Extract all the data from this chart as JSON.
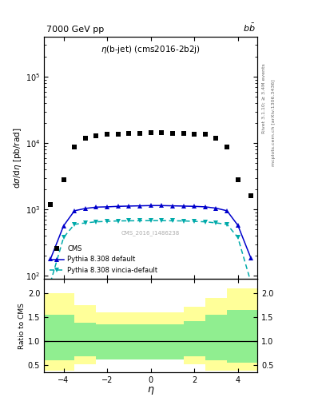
{
  "title_left": "7000 GeV pp",
  "title_right": "b$\\bar{b}$",
  "plot_title": "$\\eta$(b-jet) (cms2016-2b2j)",
  "xlabel": "$\\eta$",
  "ylabel_main": "d$\\sigma$/d$\\eta$ [pb/rad]",
  "ylabel_ratio": "Ratio to CMS",
  "right_label_top": "Rivet 3.1.10; ≥ 3.4M events",
  "right_label_bottom": "mcplots.cern.ch [arXiv:1306.3436]",
  "watermark": "CMS_2016_I1486238",
  "xlim": [
    -4.9,
    4.9
  ],
  "ylim_main": [
    90,
    400000
  ],
  "ylim_ratio": [
    0.35,
    2.3
  ],
  "cms_eta": [
    -4.6,
    -4.0,
    -3.5,
    -3.0,
    -2.5,
    -2.0,
    -1.5,
    -1.0,
    -0.5,
    0.0,
    0.5,
    1.0,
    1.5,
    2.0,
    2.5,
    3.0,
    3.5,
    4.0,
    4.6
  ],
  "cms_values": [
    1200,
    2800,
    8800,
    12000,
    13000,
    13500,
    13500,
    14000,
    14000,
    14500,
    14500,
    14200,
    14000,
    13800,
    13500,
    12000,
    8800,
    2800,
    1600
  ],
  "pythia_default_eta": [
    -4.6,
    -4.0,
    -3.5,
    -3.0,
    -2.5,
    -2.0,
    -1.5,
    -1.0,
    -0.5,
    0.0,
    0.5,
    1.0,
    1.5,
    2.0,
    2.5,
    3.0,
    3.5,
    4.0,
    4.6
  ],
  "pythia_default_values": [
    180,
    570,
    960,
    1040,
    1090,
    1100,
    1120,
    1130,
    1140,
    1150,
    1150,
    1140,
    1130,
    1120,
    1100,
    1050,
    960,
    580,
    185
  ],
  "pythia_vincia_eta": [
    -4.6,
    -4.0,
    -3.5,
    -3.0,
    -2.5,
    -2.0,
    -1.5,
    -1.0,
    -0.5,
    0.0,
    0.5,
    1.0,
    1.5,
    2.0,
    2.5,
    3.0,
    3.5,
    4.0,
    4.6
  ],
  "pythia_vincia_values": [
    80,
    380,
    600,
    630,
    655,
    665,
    675,
    678,
    680,
    682,
    682,
    678,
    675,
    665,
    655,
    630,
    600,
    380,
    80
  ],
  "ratio_edges": [
    -4.9,
    -3.5,
    -2.5,
    -1.5,
    0.5,
    1.5,
    2.5,
    3.5,
    4.9
  ],
  "ratio_green_low": [
    0.6,
    0.68,
    0.62,
    0.62,
    0.62,
    0.68,
    0.6,
    0.55
  ],
  "ratio_green_high": [
    1.55,
    1.38,
    1.35,
    1.35,
    1.35,
    1.42,
    1.55,
    1.65
  ],
  "ratio_yellow_low": [
    0.38,
    0.52,
    0.62,
    0.62,
    0.62,
    0.52,
    0.38,
    0.38
  ],
  "ratio_yellow_high": [
    2.0,
    1.75,
    1.6,
    1.6,
    1.6,
    1.72,
    1.9,
    2.1
  ],
  "color_cms": "#000000",
  "color_pythia_default": "#0000cc",
  "color_pythia_vincia": "#00aaaa",
  "color_green": "#90ee90",
  "color_yellow": "#ffff99",
  "bg_color": "#ffffff"
}
